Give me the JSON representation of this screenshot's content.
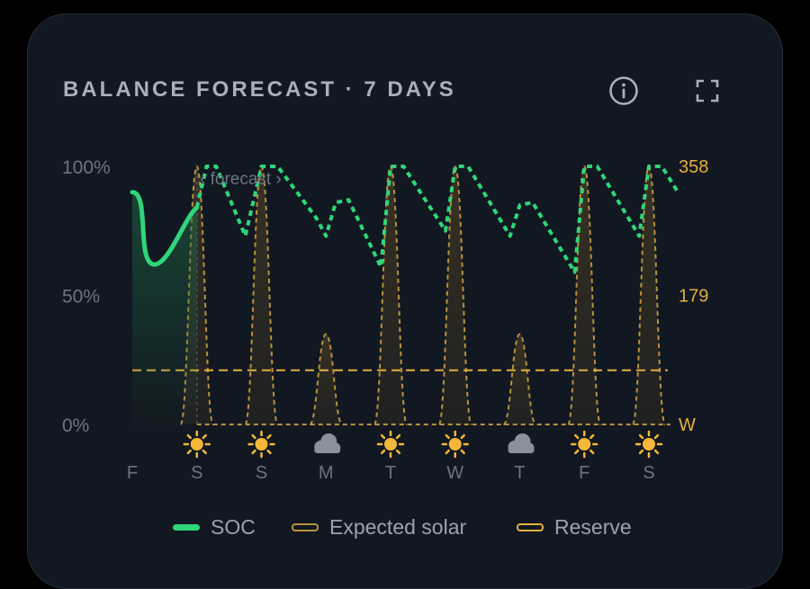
{
  "header": {
    "title": "BALANCE FORECAST · 7 DAYS",
    "info_icon": "info-icon",
    "expand_icon": "fullscreen-icon"
  },
  "chart_data": {
    "type": "line",
    "left_axis": {
      "ticks": [
        "100%",
        "50%",
        "0%"
      ],
      "range": [
        0,
        100
      ],
      "unit": "%"
    },
    "right_axis": {
      "ticks": [
        "358",
        "179",
        "W"
      ],
      "range": [
        0,
        358
      ]
    },
    "annotation": "‹ forecast ›",
    "days": [
      "F",
      "S",
      "S",
      "M",
      "T",
      "W",
      "T",
      "F",
      "S"
    ],
    "weather": [
      "",
      "sun",
      "sun",
      "cloud",
      "sun",
      "sun",
      "cloud",
      "sun",
      "sun"
    ],
    "solar_peaks": [
      358,
      358,
      355,
      357,
      358,
      356,
      361,
      358,
      360
    ],
    "solar_peak_scale": [
      1.0,
      1.0,
      0.35,
      1.0,
      1.0,
      0.35,
      1.0,
      1.0
    ],
    "reserve_percent": 21,
    "series": [
      {
        "name": "SOC",
        "color": "#2fd67a",
        "history": [
          [
            0,
            90
          ],
          [
            0.3,
            62
          ],
          [
            0.5,
            68
          ],
          [
            1.0,
            84
          ]
        ],
        "forecast": [
          [
            1.0,
            84
          ],
          [
            1.15,
            100
          ],
          [
            1.3,
            100
          ],
          [
            1.75,
            73
          ],
          [
            2.0,
            100
          ],
          [
            2.25,
            100
          ],
          [
            2.85,
            80
          ],
          [
            3.0,
            73
          ],
          [
            3.15,
            86
          ],
          [
            3.35,
            87
          ],
          [
            3.85,
            61
          ],
          [
            4.0,
            100
          ],
          [
            4.2,
            100
          ],
          [
            4.85,
            75
          ],
          [
            5.0,
            100
          ],
          [
            5.2,
            100
          ],
          [
            5.85,
            73
          ],
          [
            6.0,
            85
          ],
          [
            6.2,
            86
          ],
          [
            6.85,
            59
          ],
          [
            7.0,
            100
          ],
          [
            7.2,
            100
          ],
          [
            7.85,
            73
          ],
          [
            8.0,
            100
          ],
          [
            8.2,
            100
          ],
          [
            8.45,
            90
          ]
        ]
      },
      {
        "name": "Expected solar",
        "color": "#b8913e"
      },
      {
        "name": "Reserve",
        "color": "#e2b040"
      }
    ],
    "legend": [
      "SOC",
      "Expected solar",
      "Reserve"
    ]
  }
}
